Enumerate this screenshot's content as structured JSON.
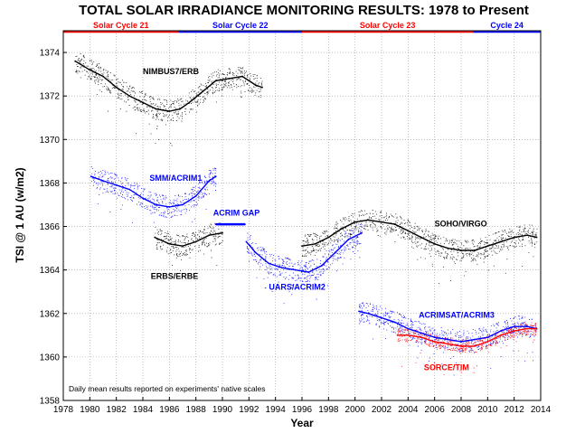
{
  "chart_data": {
    "type": "scatter",
    "title": "TOTAL SOLAR IRRADIANCE MONITORING RESULTS: 1978 to Present",
    "xlabel": "Year",
    "ylabel": "TSI @ 1 AU (w/m2)",
    "xlim": [
      1978,
      2014
    ],
    "ylim": [
      1358,
      1375
    ],
    "xticks": [
      1978,
      1980,
      1982,
      1984,
      1986,
      1988,
      1990,
      1992,
      1994,
      1996,
      1998,
      2000,
      2002,
      2004,
      2006,
      2008,
      2010,
      2012,
      2014
    ],
    "yticks": [
      1358,
      1360,
      1362,
      1364,
      1366,
      1368,
      1370,
      1372,
      1374
    ],
    "grid": true,
    "note": "Daily mean results reported on experiments' native scales",
    "cycles": [
      {
        "label": "Solar Cycle 21",
        "start": 1978,
        "end": 1986.7,
        "color": "#ff0000"
      },
      {
        "label": "Solar Cycle 22",
        "start": 1986.7,
        "end": 1996.0,
        "color": "#0000ff"
      },
      {
        "label": "Solar Cycle 23",
        "start": 1996.0,
        "end": 2008.9,
        "color": "#ff0000"
      },
      {
        "label": "Cycle 24",
        "start": 2008.9,
        "end": 2014,
        "color": "#0000ff"
      }
    ],
    "series": [
      {
        "name": "NIMBUS7/ERB",
        "color": "#000000",
        "label_at": [
          1984.0,
          1373.0
        ],
        "x": [
          1978.9,
          1980.0,
          1981.0,
          1982.0,
          1983.0,
          1984.0,
          1985.0,
          1986.0,
          1986.8,
          1987.5,
          1988.5,
          1989.5,
          1990.5,
          1991.5,
          1992.5,
          1993.0
        ],
        "y": [
          1373.6,
          1373.2,
          1372.9,
          1372.4,
          1372.0,
          1371.7,
          1371.4,
          1371.3,
          1371.4,
          1371.7,
          1372.2,
          1372.7,
          1372.8,
          1372.9,
          1372.5,
          1372.4
        ]
      },
      {
        "name": "SMM/ACRIM1",
        "color": "#0000ff",
        "label_at": [
          1984.5,
          1368.1
        ],
        "x": [
          1980.1,
          1981.0,
          1982.0,
          1983.0,
          1984.0,
          1985.0,
          1986.0,
          1987.0,
          1988.0,
          1989.0,
          1989.5
        ],
        "y": [
          1368.3,
          1368.1,
          1367.9,
          1367.7,
          1367.3,
          1367.0,
          1366.9,
          1367.0,
          1367.4,
          1368.1,
          1368.3
        ]
      },
      {
        "name": "ERBS/ERBE",
        "color": "#000000",
        "label_at": [
          1984.6,
          1363.6
        ],
        "x": [
          1984.9,
          1986.0,
          1987.0,
          1988.0,
          1989.0,
          1990.0
        ],
        "y": [
          1365.5,
          1365.2,
          1365.1,
          1365.3,
          1365.6,
          1365.7
        ]
      },
      {
        "name": "ACRIM GAP",
        "color": "#0000ff",
        "label_at": [
          1989.3,
          1366.5
        ],
        "x": [
          1989.5,
          1991.7
        ],
        "y": [
          1366.1,
          1366.1
        ]
      },
      {
        "name": "UARS/ACRIM2",
        "color": "#0000ff",
        "label_at": [
          1993.5,
          1363.1
        ],
        "x": [
          1991.8,
          1992.5,
          1993.5,
          1994.5,
          1995.5,
          1996.5,
          1997.5,
          1998.5,
          1999.5,
          2000.5
        ],
        "y": [
          1365.3,
          1364.8,
          1364.3,
          1364.1,
          1364.0,
          1363.9,
          1364.2,
          1364.8,
          1365.4,
          1365.7
        ]
      },
      {
        "name": "SOHO/VIRGO",
        "color": "#000000",
        "label_at": [
          2006.0,
          1366.0
        ],
        "x": [
          1996.0,
          1997.0,
          1998.0,
          1999.0,
          2000.0,
          2001.0,
          2002.0,
          2003.0,
          2004.0,
          2005.0,
          2006.0,
          2007.0,
          2008.0,
          2009.0,
          2010.0,
          2011.0,
          2012.0,
          2013.0,
          2013.7
        ],
        "y": [
          1365.1,
          1365.2,
          1365.5,
          1365.9,
          1366.2,
          1366.3,
          1366.2,
          1366.1,
          1365.8,
          1365.5,
          1365.2,
          1365.0,
          1364.9,
          1364.9,
          1365.1,
          1365.3,
          1365.5,
          1365.6,
          1365.5
        ]
      },
      {
        "name": "ACRIMSAT/ACRIM3",
        "color": "#0000ff",
        "label_at": [
          2004.8,
          1361.8
        ],
        "x": [
          2000.3,
          2001.0,
          2002.0,
          2003.0,
          2004.0,
          2005.0,
          2006.0,
          2007.0,
          2008.0,
          2009.0,
          2010.0,
          2011.0,
          2012.0,
          2013.0,
          2013.7
        ],
        "y": [
          1362.1,
          1362.0,
          1361.8,
          1361.6,
          1361.3,
          1361.1,
          1360.9,
          1360.8,
          1360.7,
          1360.8,
          1360.9,
          1361.2,
          1361.4,
          1361.4,
          1361.3
        ]
      },
      {
        "name": "SORCE/TIM",
        "color": "#ff0000",
        "label_at": [
          2005.2,
          1359.4
        ],
        "x": [
          2003.2,
          2004.0,
          2005.0,
          2006.0,
          2007.0,
          2008.0,
          2009.0,
          2010.0,
          2011.0,
          2012.0,
          2013.0,
          2013.7
        ],
        "y": [
          1361.0,
          1361.0,
          1360.9,
          1360.7,
          1360.6,
          1360.5,
          1360.5,
          1360.7,
          1361.0,
          1361.2,
          1361.3,
          1361.3
        ]
      }
    ]
  }
}
